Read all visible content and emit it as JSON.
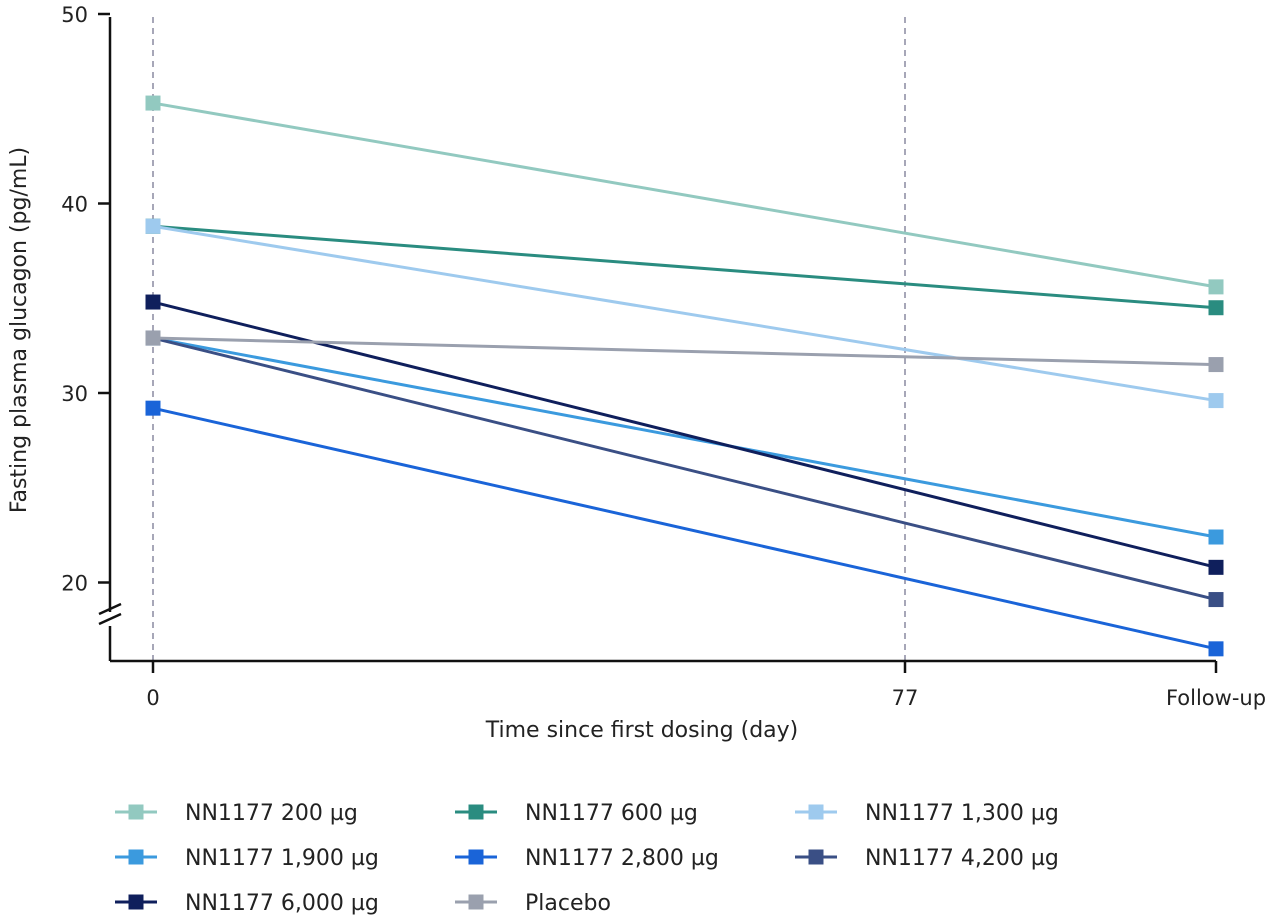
{
  "chart_data": {
    "type": "line",
    "xlabel": "Time since first dosing (day)",
    "ylabel": "Fasting plasma glucagon (pg/mL)",
    "categories": [
      "0",
      "77",
      "Follow-up"
    ],
    "x_tick_labels": [
      "0",
      "77",
      "Follow-up"
    ],
    "y_ticks": [
      20,
      30,
      40,
      50
    ],
    "ylim": [
      16,
      50
    ],
    "y_axis_break": true,
    "reference_lines_at": [
      "0",
      "77"
    ],
    "legend_position": "bottom",
    "series": [
      {
        "name": "NN1177 200 µg",
        "color": "#92c9c0",
        "values": [
          45.3,
          null,
          35.6
        ]
      },
      {
        "name": "NN1177 600 µg",
        "color": "#2a8c80",
        "values": [
          38.8,
          null,
          34.5
        ]
      },
      {
        "name": "NN1177 1,300 µg",
        "color": "#9ecaee",
        "values": [
          38.8,
          null,
          29.6
        ]
      },
      {
        "name": "NN1177 1,900 µg",
        "color": "#3b9ade",
        "values": [
          32.9,
          null,
          22.4
        ]
      },
      {
        "name": "NN1177 2,800 µg",
        "color": "#1a64d8",
        "values": [
          29.2,
          null,
          16.5
        ]
      },
      {
        "name": "NN1177 4,200 µg",
        "color": "#3a4f85",
        "values": [
          32.9,
          null,
          19.1
        ]
      },
      {
        "name": "NN1177 6,000 µg",
        "color": "#0f1f5c",
        "values": [
          34.8,
          null,
          20.8
        ]
      },
      {
        "name": "Placebo",
        "color": "#9aa0ae",
        "values": [
          32.9,
          null,
          31.5
        ]
      }
    ]
  }
}
